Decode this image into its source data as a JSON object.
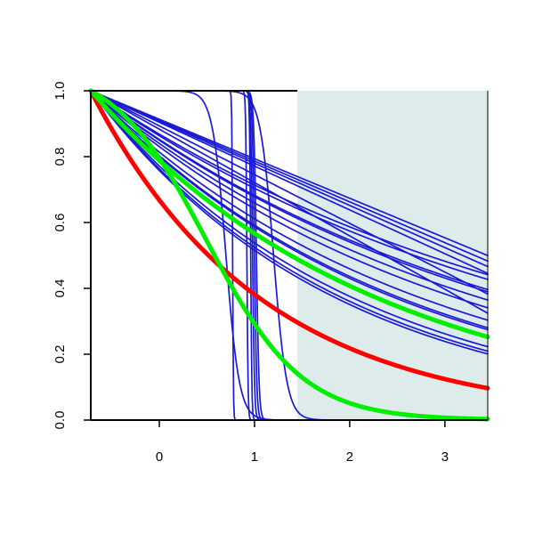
{
  "chart_data": {
    "type": "line",
    "title": "",
    "xlabel": "",
    "ylabel": "",
    "xlim": [
      -0.72,
      3.45
    ],
    "ylim": [
      0,
      1
    ],
    "x_ticks": [
      0,
      1,
      2,
      3
    ],
    "x_tick_labels": [
      "0",
      "1",
      "2",
      "3"
    ],
    "y_ticks": [
      0,
      0.2,
      0.4,
      0.6,
      0.8,
      1
    ],
    "y_tick_labels": [
      "0.0",
      "0.2",
      "0.4",
      "0.6",
      "0.8",
      "1.0"
    ],
    "grid": false,
    "legend": "none",
    "shaded_region": {
      "x_from": 1.45,
      "x_to": 3.45,
      "color": "#deebeb"
    },
    "colors": {
      "thin": "#1a1ad6",
      "red": "#ff0000",
      "green": "#00ee00",
      "axis": "#000000"
    },
    "curves": [
      {
        "name": "",
        "kind": "linear",
        "slope": 0.12,
        "color": "thin"
      },
      {
        "name": "",
        "kind": "linear",
        "slope": 0.124,
        "color": "thin"
      },
      {
        "name": "",
        "kind": "linear",
        "slope": 0.128,
        "color": "thin"
      },
      {
        "name": "",
        "kind": "linear",
        "slope": 0.133,
        "color": "thin"
      },
      {
        "name": "",
        "kind": "linear",
        "slope": 0.148,
        "color": "thin"
      },
      {
        "name": "",
        "kind": "linear",
        "slope": 0.162,
        "color": "thin"
      },
      {
        "name": "",
        "kind": "exp",
        "rate": 0.196,
        "color": "thin"
      },
      {
        "name": "",
        "kind": "exp",
        "rate": 0.204,
        "color": "thin"
      },
      {
        "name": "",
        "kind": "exp",
        "rate": 0.222,
        "color": "thin"
      },
      {
        "name": "",
        "kind": "exp",
        "rate": 0.226,
        "color": "thin"
      },
      {
        "name": "",
        "kind": "exp",
        "rate": 0.242,
        "color": "thin"
      },
      {
        "name": "",
        "kind": "exp",
        "rate": 0.258,
        "color": "thin"
      },
      {
        "name": "",
        "kind": "exp",
        "rate": 0.286,
        "color": "thin"
      },
      {
        "name": "",
        "kind": "exp",
        "rate": 0.305,
        "color": "thin"
      },
      {
        "name": "",
        "kind": "exp",
        "rate": 0.31,
        "color": "thin"
      },
      {
        "name": "",
        "kind": "exp",
        "rate": 0.36,
        "color": "thin"
      },
      {
        "name": "",
        "kind": "exp",
        "rate": 0.375,
        "color": "thin"
      },
      {
        "name": "",
        "kind": "exp",
        "rate": 0.385,
        "color": "thin"
      },
      {
        "name": "",
        "kind": "sigmoid",
        "center": 0.7,
        "scale": 0.07,
        "color": "thin"
      },
      {
        "name": "",
        "kind": "sigmoid",
        "center": 0.77,
        "scale": 0.004,
        "color": "thin"
      },
      {
        "name": "",
        "kind": "sigmoid",
        "center": 0.92,
        "scale": 0.006,
        "color": "thin"
      },
      {
        "name": "",
        "kind": "sigmoid",
        "center": 0.96,
        "scale": 0.006,
        "color": "thin"
      },
      {
        "name": "",
        "kind": "sigmoid",
        "center": 0.98,
        "scale": 0.01,
        "color": "thin"
      },
      {
        "name": "",
        "kind": "sigmoid",
        "center": 1.0,
        "scale": 0.012,
        "color": "thin"
      },
      {
        "name": "",
        "kind": "sigmoid",
        "center": 1.02,
        "scale": 0.014,
        "color": "thin"
      },
      {
        "name": "",
        "kind": "sigmoid",
        "center": 1.2,
        "scale": 0.07,
        "color": "thin"
      },
      {
        "name": "",
        "kind": "exp",
        "rate": 0.56,
        "color": "red",
        "width": "thick"
      },
      {
        "name": "",
        "kind": "exp",
        "rate": 0.33,
        "color": "green",
        "width": "thick"
      },
      {
        "name": "",
        "kind": "sigmoid",
        "center": 0.5,
        "scale": 0.5,
        "color": "green",
        "width": "thick"
      }
    ]
  }
}
